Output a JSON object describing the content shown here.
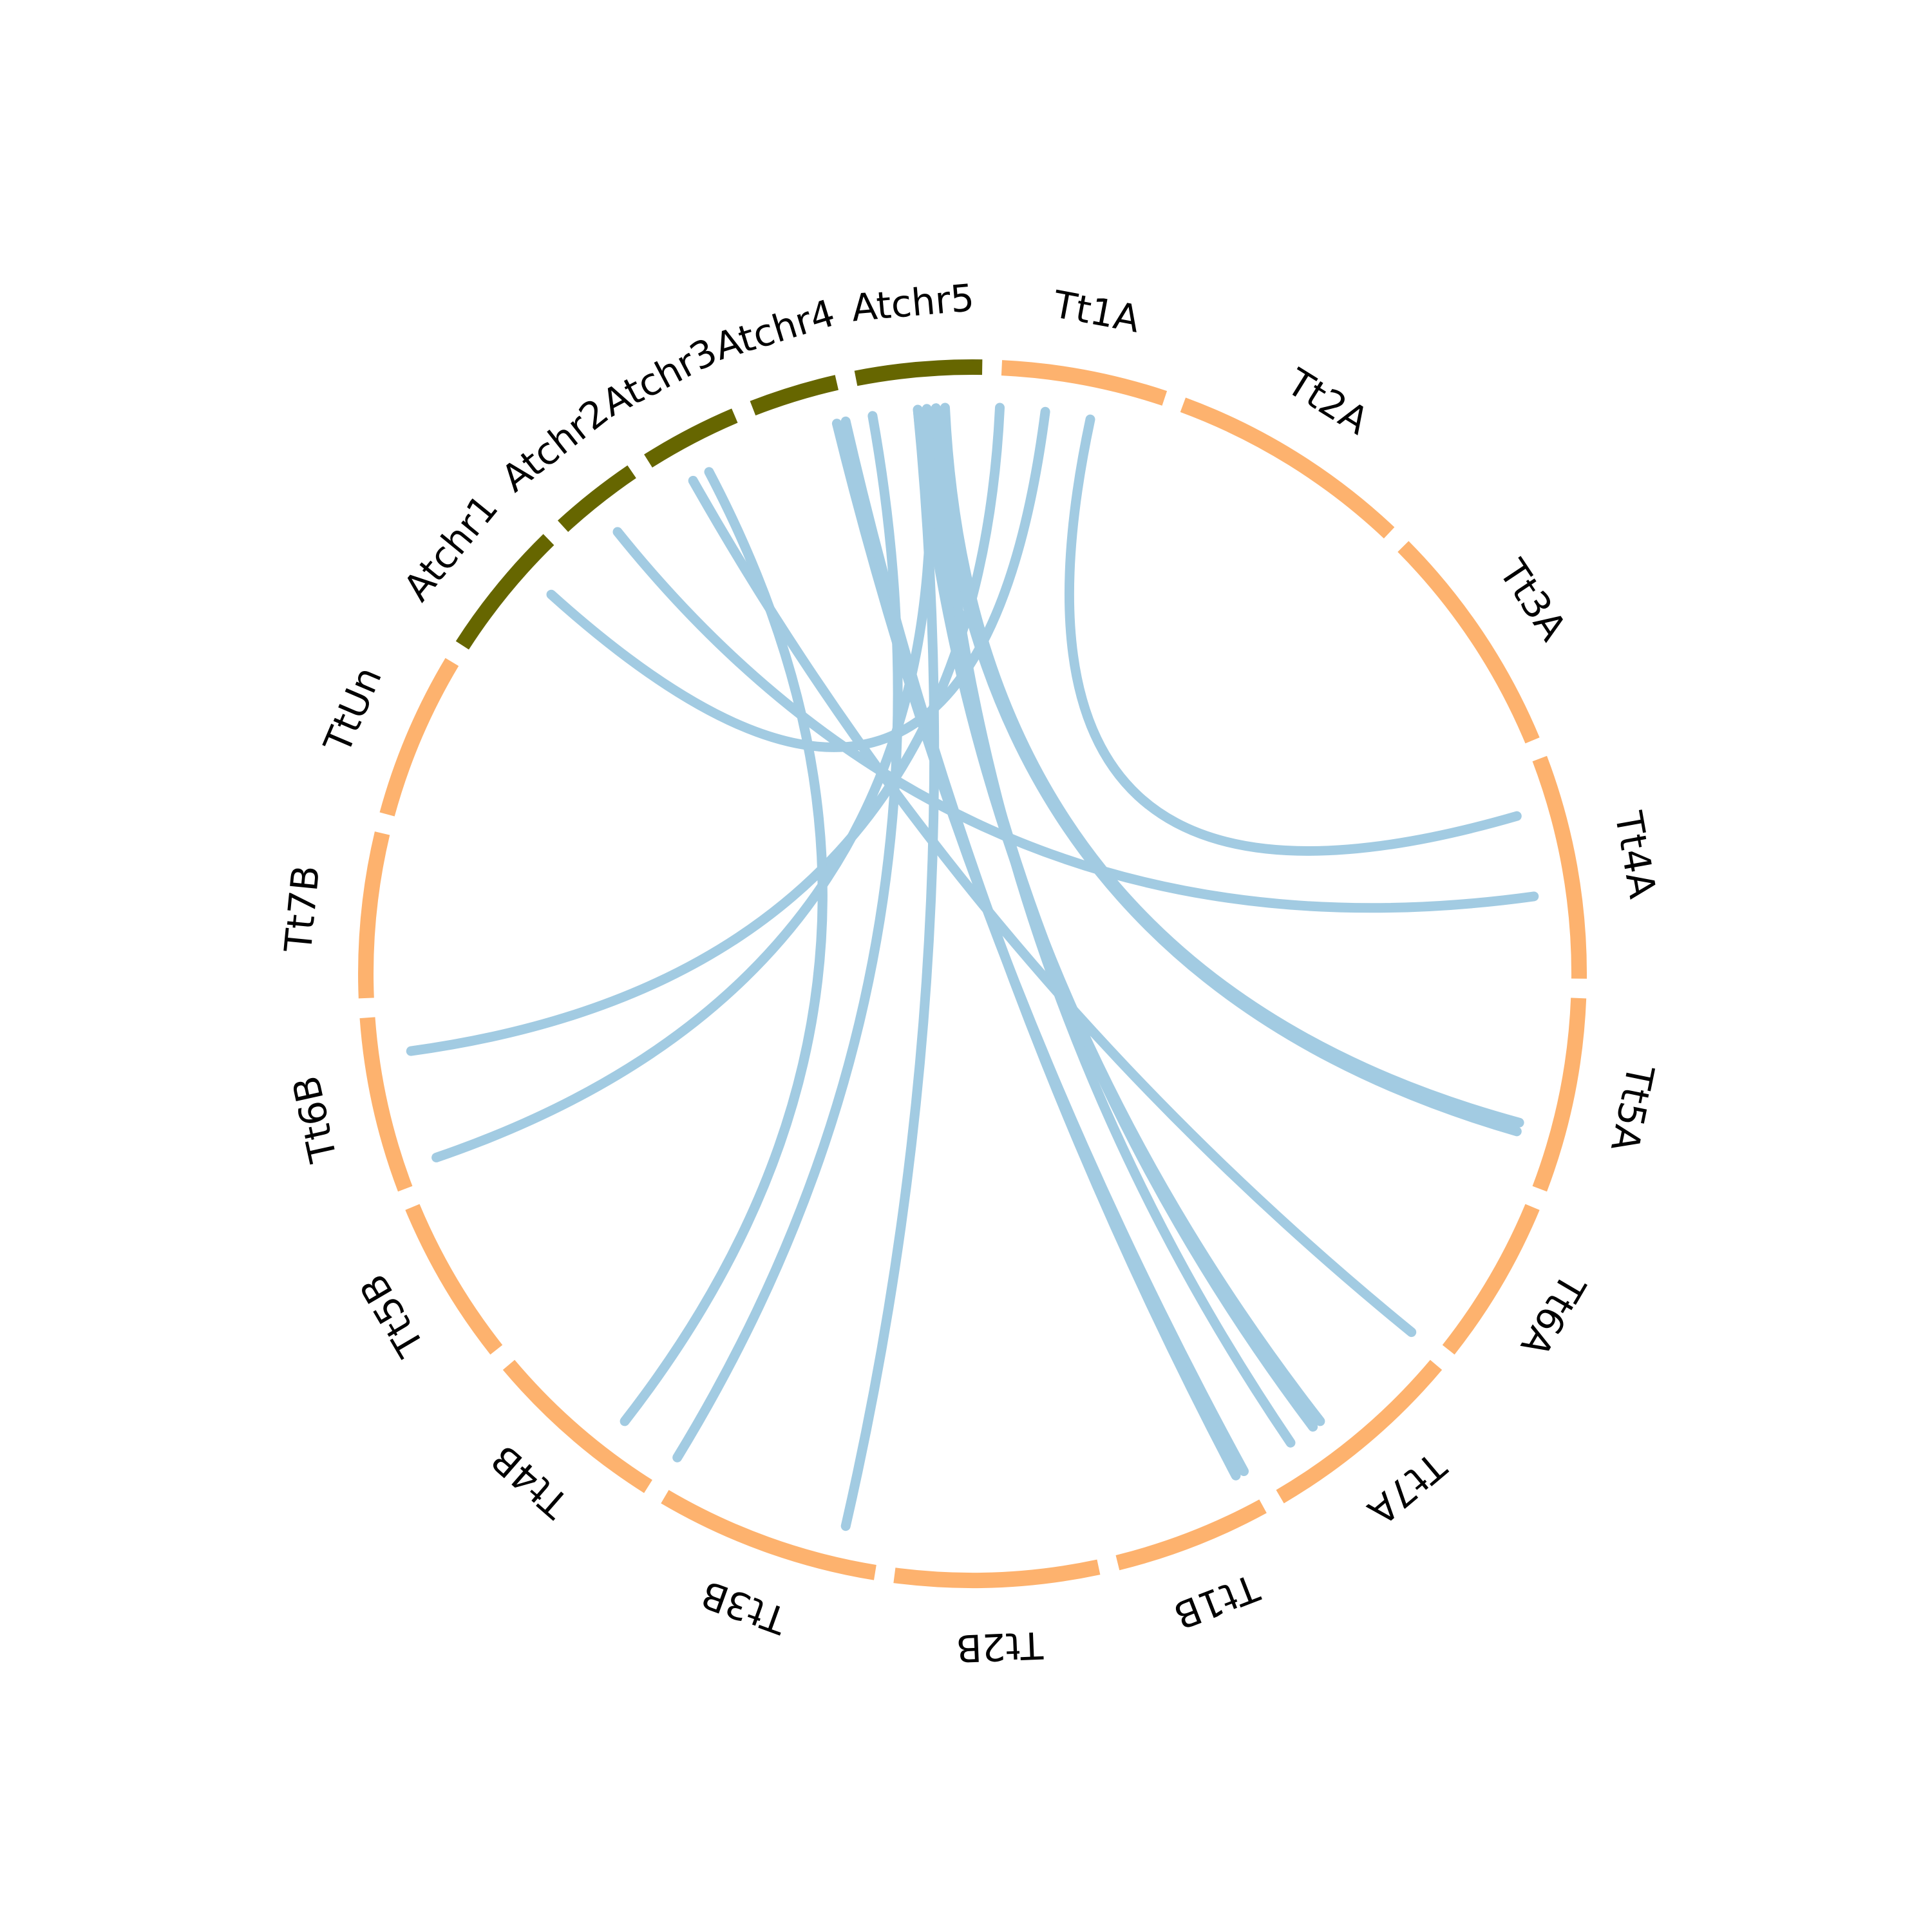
{
  "diagram": {
    "type": "circos",
    "colors": {
      "wheat_segment": "#fdb26e",
      "arabidopsis_segment": "#666600",
      "link": "#a2cbe2"
    },
    "segments": [
      {
        "id": "Atchr1",
        "label": "Atchr1",
        "group": "arabidopsis",
        "start": 326,
        "end": 340
      },
      {
        "id": "Atchr2",
        "label": "Atchr2",
        "group": "arabidopsis",
        "start": 342,
        "end": 351
      },
      {
        "id": "Atchr3",
        "label": "Atchr3",
        "group": "arabidopsis",
        "start": 353,
        "end": 363
      },
      {
        "id": "Atchr4",
        "label": "Atchr4",
        "group": "arabidopsis",
        "start": 365,
        "end": 374
      },
      {
        "id": "Atchr5",
        "label": "Atchr5",
        "group": "arabidopsis",
        "start": 376,
        "end": 389
      },
      {
        "id": "Tt1A",
        "label": "Tt1A",
        "group": "wheat",
        "start": 1,
        "end": 18
      },
      {
        "id": "Tt2A",
        "label": "Tt2A",
        "group": "wheat",
        "start": 20,
        "end": 45
      },
      {
        "id": "Tt3A",
        "label": "Tt3A",
        "group": "wheat",
        "start": 47,
        "end": 71
      },
      {
        "id": "Tt4A",
        "label": "Tt4A",
        "group": "wheat",
        "start": 73,
        "end": 96
      },
      {
        "id": "Tt5A",
        "label": "Tt5A",
        "group": "wheat",
        "start": 98,
        "end": 118
      },
      {
        "id": "Tt6A",
        "label": "Tt6A",
        "group": "wheat",
        "start": 120,
        "end": 137
      },
      {
        "id": "Tt7A",
        "label": "Tt7A",
        "group": "wheat",
        "start": 139,
        "end": 160
      },
      {
        "id": "Tt1B",
        "label": "Tt1B",
        "group": "wheat",
        "start": 162,
        "end": 178
      },
      {
        "id": "Tt2B",
        "label": "Tt2B",
        "group": "wheat",
        "start": 180,
        "end": 201
      },
      {
        "id": "Tt3B",
        "label": "Tt3B",
        "group": "wheat",
        "start": 203,
        "end": 226
      },
      {
        "id": "Tt4B",
        "label": "Tt4B",
        "group": "wheat",
        "start": 228,
        "end": 247
      },
      {
        "id": "Tt5B",
        "label": "Tt5B",
        "group": "wheat",
        "start": 249,
        "end": 266
      },
      {
        "id": "Tt6B",
        "label": "Tt6B",
        "group": "wheat",
        "start": 268,
        "end": 286
      },
      {
        "id": "Tt7B",
        "label": "Tt7B",
        "group": "wheat",
        "start": 288,
        "end": 305
      },
      {
        "id": "TtUn",
        "label": "TtUn",
        "group": "wheat",
        "start": 307,
        "end": 324
      }
    ],
    "links": [
      {
        "from": 6,
        "to": 336
      },
      {
        "from": 11,
        "to": 78
      },
      {
        "from": 1,
        "to": 282
      },
      {
        "from": 87,
        "to": 346
      },
      {
        "from": 113,
        "to": 384
      },
      {
        "from": 138,
        "to": 356
      },
      {
        "from": 152,
        "to": 382
      },
      {
        "from": 153,
        "to": 383
      },
      {
        "from": 162,
        "to": 373
      },
      {
        "from": 163,
        "to": 374
      },
      {
        "from": 207,
        "to": 382
      },
      {
        "from": 227,
        "to": 377
      },
      {
        "from": 234,
        "to": 358
      },
      {
        "from": 270,
        "to": 383
      },
      {
        "from": 112,
        "to": 385
      },
      {
        "from": 156,
        "to": 384
      }
    ]
  }
}
